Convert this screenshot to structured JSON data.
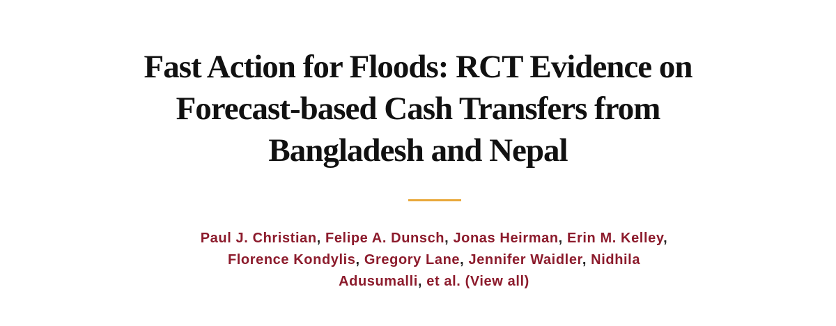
{
  "title": "Fast Action for Floods: RCT Evidence on Forecast-based Cash Transfers from Bangladesh and Nepal",
  "authors": [
    "Paul J. Christian",
    "Felipe A. Dunsch",
    "Jonas Heirman",
    "Erin M. Kelley",
    "Florence Kondylis",
    "Gregory Lane",
    "Jennifer Waidler",
    "Nidhila Adusumalli"
  ],
  "view_all": "et al. (View all)"
}
